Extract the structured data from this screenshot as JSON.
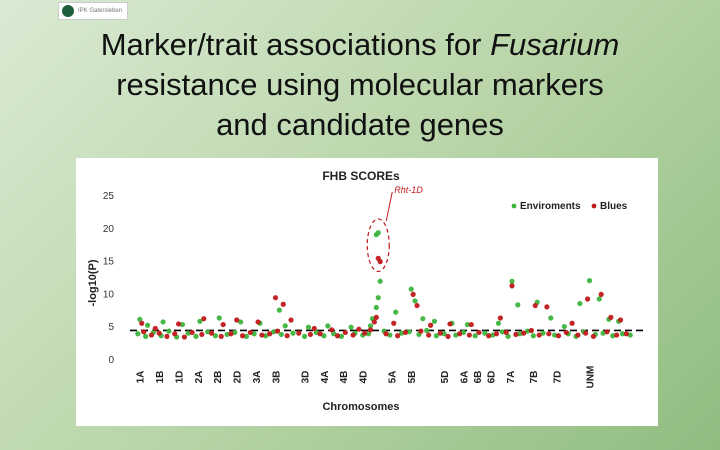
{
  "logo": {
    "text": "IPK Gatersleben"
  },
  "slide": {
    "title_line1_pre": "Marker/trait associations for ",
    "title_line1_italic": "Fusarium",
    "title_line2": "resistance using molecular markers",
    "title_line3": "and candidate genes"
  },
  "colors": {
    "environments": "#3cb43c",
    "blues": "#c0191b",
    "threshold": "#000000",
    "highlight": "#c0191b"
  },
  "chart_data": {
    "type": "scatter",
    "title": "FHB  SCOREs",
    "xlabel": "Chromosomes",
    "ylabel": "-log10(P)",
    "ylim": [
      0,
      25
    ],
    "yticks": [
      0,
      5,
      10,
      15,
      20,
      25
    ],
    "threshold": 4.5,
    "annotation": "Rht-1D",
    "legend": {
      "position": "top-right",
      "items": [
        "Enviroments",
        "Blues"
      ]
    },
    "categories": [
      "1A",
      "1B",
      "1D",
      "2A",
      "2B",
      "2D",
      "3A",
      "3B",
      "3D",
      "4A",
      "4B",
      "4D",
      "5A",
      "5B",
      "5D",
      "6A",
      "6B",
      "6D",
      "7A",
      "7B",
      "7D",
      "UNM"
    ],
    "category_x": [
      0.5,
      1.5,
      2.5,
      3.5,
      4.5,
      5.5,
      6.5,
      7.5,
      9.0,
      10.0,
      11.0,
      12.0,
      13.5,
      14.5,
      16.2,
      17.2,
      17.9,
      18.6,
      19.6,
      20.8,
      22.0,
      23.7
    ],
    "xlim": [
      0,
      26
    ],
    "series": [
      {
        "name": "Enviroments",
        "points": [
          [
            0.3,
            6.2
          ],
          [
            0.7,
            5.3
          ],
          [
            1.5,
            5.8
          ],
          [
            2.5,
            5.4
          ],
          [
            3.4,
            5.9
          ],
          [
            4.4,
            6.4
          ],
          [
            5.5,
            5.8
          ],
          [
            6.5,
            5.6
          ],
          [
            7.5,
            7.6
          ],
          [
            7.8,
            5.2
          ],
          [
            9.0,
            5.0
          ],
          [
            10.0,
            5.2
          ],
          [
            11.2,
            5.0
          ],
          [
            12.2,
            5.2
          ],
          [
            12.6,
            19.4
          ],
          [
            12.5,
            19.1
          ],
          [
            12.7,
            12.0
          ],
          [
            12.6,
            9.5
          ],
          [
            12.5,
            8.0
          ],
          [
            12.3,
            6.3
          ],
          [
            13.5,
            7.3
          ],
          [
            14.3,
            10.8
          ],
          [
            14.5,
            9.0
          ],
          [
            14.9,
            6.3
          ],
          [
            15.5,
            5.9
          ],
          [
            16.4,
            5.6
          ],
          [
            17.2,
            5.4
          ],
          [
            18.8,
            5.6
          ],
          [
            19.5,
            12.0
          ],
          [
            19.8,
            8.4
          ],
          [
            20.8,
            8.8
          ],
          [
            21.5,
            6.4
          ],
          [
            22.2,
            5.1
          ],
          [
            23.0,
            8.6
          ],
          [
            23.5,
            12.1
          ],
          [
            24.0,
            9.3
          ],
          [
            24.5,
            6.2
          ],
          [
            25.0,
            5.9
          ],
          [
            0.2,
            4.0
          ],
          [
            0.6,
            3.6
          ],
          [
            1.0,
            4.2
          ],
          [
            1.4,
            3.7
          ],
          [
            1.8,
            4.4
          ],
          [
            2.2,
            3.5
          ],
          [
            2.8,
            4.1
          ],
          [
            3.2,
            3.6
          ],
          [
            3.8,
            4.3
          ],
          [
            4.2,
            3.7
          ],
          [
            4.8,
            3.9
          ],
          [
            5.2,
            4.2
          ],
          [
            5.8,
            3.6
          ],
          [
            6.2,
            4.0
          ],
          [
            6.8,
            3.7
          ],
          [
            7.2,
            4.3
          ],
          [
            7.6,
            3.9
          ],
          [
            8.2,
            4.1
          ],
          [
            8.8,
            3.6
          ],
          [
            9.4,
            4.2
          ],
          [
            9.8,
            3.7
          ],
          [
            10.3,
            4.0
          ],
          [
            10.7,
            3.6
          ],
          [
            11.4,
            4.1
          ],
          [
            11.8,
            3.8
          ],
          [
            12.1,
            4.0
          ],
          [
            12.9,
            4.4
          ],
          [
            13.2,
            3.8
          ],
          [
            13.8,
            4.1
          ],
          [
            14.2,
            4.3
          ],
          [
            14.7,
            3.9
          ],
          [
            15.1,
            4.5
          ],
          [
            15.6,
            3.7
          ],
          [
            16.0,
            4.0
          ],
          [
            16.6,
            3.8
          ],
          [
            17.0,
            4.2
          ],
          [
            17.6,
            3.7
          ],
          [
            18.1,
            4.1
          ],
          [
            18.5,
            3.8
          ],
          [
            19.0,
            4.3
          ],
          [
            19.3,
            3.6
          ],
          [
            19.9,
            4.0
          ],
          [
            20.3,
            4.4
          ],
          [
            20.6,
            3.7
          ],
          [
            21.1,
            4.1
          ],
          [
            21.7,
            3.8
          ],
          [
            22.4,
            4.0
          ],
          [
            22.8,
            3.6
          ],
          [
            23.2,
            4.3
          ],
          [
            23.8,
            3.9
          ],
          [
            24.2,
            4.1
          ],
          [
            24.7,
            3.7
          ],
          [
            25.2,
            4.0
          ],
          [
            25.6,
            3.8
          ]
        ]
      },
      {
        "name": "Blues",
        "points": [
          [
            0.4,
            5.6
          ],
          [
            1.1,
            4.8
          ],
          [
            2.3,
            5.5
          ],
          [
            3.6,
            6.3
          ],
          [
            4.6,
            5.4
          ],
          [
            5.3,
            6.1
          ],
          [
            6.4,
            5.8
          ],
          [
            7.3,
            9.5
          ],
          [
            7.7,
            8.5
          ],
          [
            8.1,
            6.1
          ],
          [
            9.3,
            4.8
          ],
          [
            10.2,
            4.6
          ],
          [
            11.6,
            4.7
          ],
          [
            12.6,
            15.5
          ],
          [
            12.7,
            15.0
          ],
          [
            12.5,
            6.5
          ],
          [
            12.4,
            5.8
          ],
          [
            13.4,
            5.6
          ],
          [
            14.4,
            10.0
          ],
          [
            14.6,
            8.3
          ],
          [
            15.3,
            5.3
          ],
          [
            16.3,
            5.5
          ],
          [
            17.4,
            5.4
          ],
          [
            18.9,
            6.4
          ],
          [
            19.5,
            11.3
          ],
          [
            20.7,
            8.3
          ],
          [
            21.3,
            8.1
          ],
          [
            22.6,
            5.6
          ],
          [
            23.4,
            9.3
          ],
          [
            24.1,
            10.0
          ],
          [
            24.6,
            6.5
          ],
          [
            25.1,
            6.1
          ],
          [
            0.5,
            4.3
          ],
          [
            0.9,
            3.8
          ],
          [
            1.3,
            4.1
          ],
          [
            1.7,
            3.6
          ],
          [
            2.1,
            4.0
          ],
          [
            2.6,
            3.5
          ],
          [
            3.0,
            4.2
          ],
          [
            3.5,
            3.9
          ],
          [
            4.0,
            4.1
          ],
          [
            4.5,
            3.6
          ],
          [
            5.0,
            4.0
          ],
          [
            5.6,
            3.7
          ],
          [
            6.0,
            4.2
          ],
          [
            6.6,
            3.8
          ],
          [
            7.0,
            4.0
          ],
          [
            7.4,
            4.4
          ],
          [
            7.9,
            3.7
          ],
          [
            8.5,
            4.1
          ],
          [
            9.1,
            3.9
          ],
          [
            9.6,
            4.0
          ],
          [
            10.5,
            3.7
          ],
          [
            10.9,
            4.2
          ],
          [
            11.3,
            3.8
          ],
          [
            11.9,
            4.1
          ],
          [
            12.2,
            4.6
          ],
          [
            13.0,
            4.0
          ],
          [
            13.6,
            3.7
          ],
          [
            14.0,
            4.2
          ],
          [
            14.8,
            4.4
          ],
          [
            15.2,
            3.8
          ],
          [
            15.8,
            4.1
          ],
          [
            16.2,
            3.6
          ],
          [
            16.8,
            4.0
          ],
          [
            17.3,
            3.8
          ],
          [
            17.8,
            4.2
          ],
          [
            18.3,
            3.7
          ],
          [
            18.7,
            4.0
          ],
          [
            19.2,
            4.2
          ],
          [
            19.7,
            3.9
          ],
          [
            20.1,
            4.1
          ],
          [
            20.5,
            4.5
          ],
          [
            20.9,
            3.8
          ],
          [
            21.4,
            4.0
          ],
          [
            21.9,
            3.7
          ],
          [
            22.3,
            4.2
          ],
          [
            22.9,
            3.8
          ],
          [
            23.3,
            4.1
          ],
          [
            23.7,
            3.6
          ],
          [
            24.4,
            4.3
          ],
          [
            24.9,
            3.8
          ],
          [
            25.4,
            4.0
          ]
        ]
      }
    ]
  }
}
